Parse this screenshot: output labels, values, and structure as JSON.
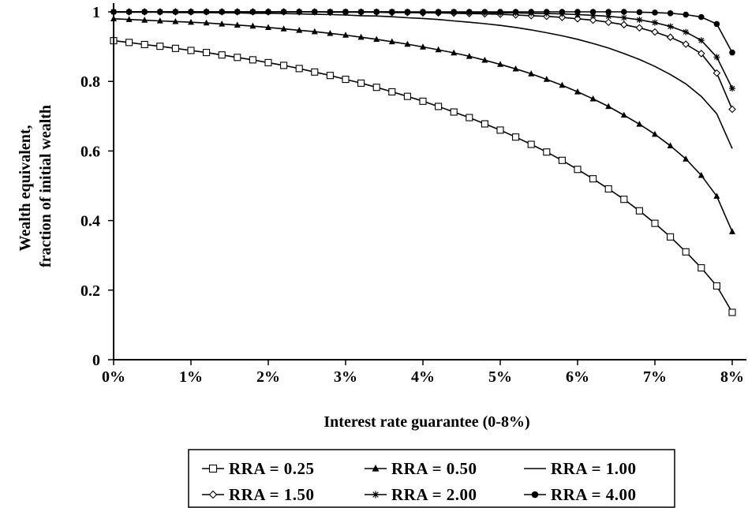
{
  "chart_data": {
    "type": "line",
    "xlabel": "Interest rate guarantee (0-8%)",
    "ylabel_lines": [
      "Wealth equivalent,",
      "fraction of initial wealth"
    ],
    "xlim": [
      0,
      8
    ],
    "ylim": [
      0,
      1
    ],
    "x_ticks": [
      0,
      1,
      2,
      3,
      4,
      5,
      6,
      7,
      8
    ],
    "x_tick_labels": [
      "0%",
      "1%",
      "2%",
      "3%",
      "4%",
      "5%",
      "6%",
      "7%",
      "8%"
    ],
    "y_ticks": [
      0,
      0.2,
      0.4,
      0.6,
      0.8,
      1
    ],
    "y_tick_labels": [
      "0",
      "0.2",
      "0.4",
      "0.6",
      "0.8",
      "1"
    ],
    "grid": false,
    "legend": {
      "placement": "bottom-center",
      "columns": 3
    },
    "x": [
      0,
      0.2,
      0.4,
      0.6,
      0.8,
      1.0,
      1.2,
      1.4,
      1.6,
      1.8,
      2.0,
      2.2,
      2.4,
      2.6,
      2.8,
      3.0,
      3.2,
      3.4,
      3.6,
      3.8,
      4.0,
      4.2,
      4.4,
      4.6,
      4.8,
      5.0,
      5.2,
      5.4,
      5.6,
      5.8,
      6.0,
      6.2,
      6.4,
      6.6,
      6.8,
      7.0,
      7.2,
      7.4,
      7.6,
      7.8,
      8.0
    ],
    "series": [
      {
        "name": "RRA = 0.25",
        "marker": "open-square",
        "values": [
          0.917,
          0.912,
          0.906,
          0.901,
          0.895,
          0.889,
          0.883,
          0.876,
          0.869,
          0.862,
          0.854,
          0.846,
          0.837,
          0.827,
          0.817,
          0.806,
          0.795,
          0.783,
          0.77,
          0.757,
          0.743,
          0.728,
          0.712,
          0.696,
          0.678,
          0.66,
          0.64,
          0.619,
          0.597,
          0.573,
          0.547,
          0.52,
          0.491,
          0.461,
          0.428,
          0.392,
          0.353,
          0.31,
          0.264,
          0.212,
          0.136
        ]
      },
      {
        "name": "RRA = 0.50",
        "marker": "filled-triangle",
        "values": [
          0.98,
          0.978,
          0.976,
          0.974,
          0.972,
          0.97,
          0.968,
          0.965,
          0.962,
          0.959,
          0.955,
          0.951,
          0.947,
          0.943,
          0.938,
          0.933,
          0.927,
          0.921,
          0.914,
          0.907,
          0.899,
          0.891,
          0.882,
          0.872,
          0.861,
          0.849,
          0.836,
          0.822,
          0.806,
          0.789,
          0.77,
          0.75,
          0.728,
          0.703,
          0.677,
          0.648,
          0.615,
          0.577,
          0.53,
          0.47,
          0.368
        ]
      },
      {
        "name": "RRA = 1.00",
        "marker": "none",
        "values": [
          0.999,
          0.999,
          0.999,
          0.999,
          0.998,
          0.998,
          0.998,
          0.997,
          0.997,
          0.996,
          0.996,
          0.995,
          0.994,
          0.993,
          0.992,
          0.991,
          0.989,
          0.988,
          0.986,
          0.983,
          0.981,
          0.978,
          0.974,
          0.97,
          0.966,
          0.961,
          0.955,
          0.948,
          0.94,
          0.931,
          0.921,
          0.909,
          0.896,
          0.88,
          0.863,
          0.843,
          0.82,
          0.793,
          0.757,
          0.707,
          0.607
        ]
      },
      {
        "name": "RRA = 1.50",
        "marker": "open-diamond",
        "values": [
          1.0,
          1.0,
          1.0,
          1.0,
          1.0,
          1.0,
          1.0,
          1.0,
          1.0,
          1.0,
          1.0,
          1.0,
          1.0,
          1.0,
          0.999,
          0.999,
          0.999,
          0.999,
          0.998,
          0.998,
          0.997,
          0.997,
          0.996,
          0.995,
          0.994,
          0.993,
          0.991,
          0.989,
          0.987,
          0.984,
          0.98,
          0.976,
          0.97,
          0.963,
          0.954,
          0.942,
          0.927,
          0.907,
          0.88,
          0.824,
          0.72
        ]
      },
      {
        "name": "RRA = 2.00",
        "marker": "asterisk",
        "values": [
          1.0,
          1.0,
          1.0,
          1.0,
          1.0,
          1.0,
          1.0,
          1.0,
          1.0,
          1.0,
          1.0,
          1.0,
          1.0,
          1.0,
          1.0,
          1.0,
          1.0,
          1.0,
          1.0,
          0.999,
          0.999,
          0.999,
          0.999,
          0.998,
          0.998,
          0.997,
          0.997,
          0.996,
          0.995,
          0.994,
          0.992,
          0.99,
          0.987,
          0.983,
          0.977,
          0.969,
          0.958,
          0.942,
          0.918,
          0.87,
          0.78
        ]
      },
      {
        "name": "RRA = 4.00",
        "marker": "filled-circle",
        "values": [
          1.0,
          1.0,
          1.0,
          1.0,
          1.0,
          1.0,
          1.0,
          1.0,
          1.0,
          1.0,
          1.0,
          1.0,
          1.0,
          1.0,
          1.0,
          1.0,
          1.0,
          1.0,
          1.0,
          1.0,
          1.0,
          1.0,
          1.0,
          1.0,
          1.0,
          1.0,
          1.0,
          1.0,
          1.0,
          1.0,
          1.0,
          1.0,
          1.0,
          1.0,
          0.999,
          0.998,
          0.996,
          0.992,
          0.985,
          0.965,
          0.883
        ]
      }
    ]
  }
}
